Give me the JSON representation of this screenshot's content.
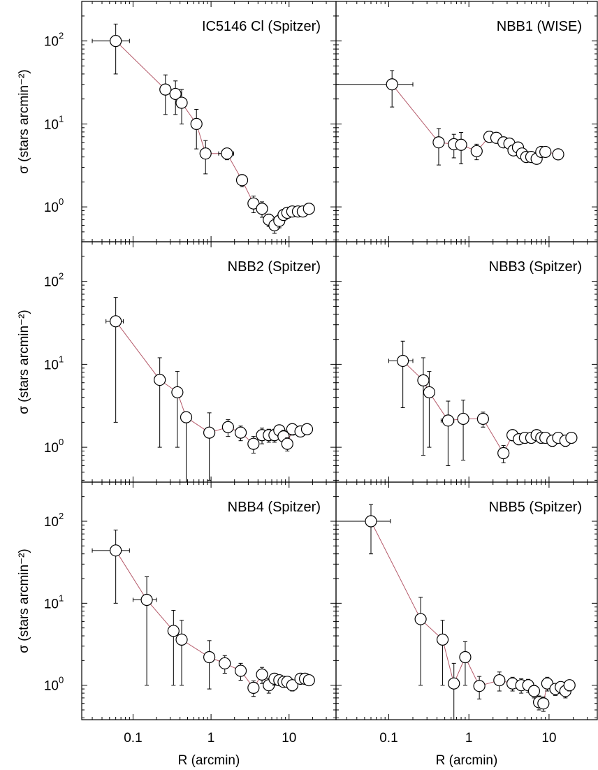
{
  "chart_data": {
    "type": "scatter",
    "layout": "3x2 grid, shared log axes",
    "xlabel": "R (arcmin)",
    "ylabel": "σ (stars arcmin⁻²)",
    "xscale": "log",
    "yscale": "log",
    "xlim": [
      0.022,
      40
    ],
    "ylim": [
      0.38,
      300
    ],
    "xticklabels": [
      {
        "value": 0.1,
        "label": "0.1"
      },
      {
        "value": 1,
        "label": "1"
      },
      {
        "value": 10,
        "label": "10"
      }
    ],
    "yticklabels": [
      {
        "value": 1,
        "label": "10",
        "exp": "0"
      },
      {
        "value": 10,
        "label": "10",
        "exp": "1"
      },
      {
        "value": 100,
        "label": "10",
        "exp": "2"
      }
    ],
    "markers": "open circles with x/y error bars",
    "line_color": "#b55a6a",
    "panels": [
      {
        "title": "IC5146 Cl (Spitzer)",
        "x": [
          0.06,
          0.26,
          0.35,
          0.42,
          0.65,
          0.85,
          1.6,
          2.5,
          3.5,
          4.5,
          5.5,
          6.5,
          7.5,
          8.5,
          9.5,
          11,
          13,
          15,
          18
        ],
        "y": [
          100,
          26,
          23,
          18,
          10,
          4.4,
          4.4,
          2.1,
          1.1,
          0.95,
          0.7,
          0.6,
          0.68,
          0.8,
          0.85,
          0.88,
          0.88,
          0.88,
          0.95
        ],
        "xerr": [
          0.03,
          0.02,
          0.02,
          0.02,
          0.05,
          0.06,
          0.35,
          0.2,
          0.3,
          0.4,
          0.4,
          0.4,
          0.4,
          0.4,
          0.4,
          0.5,
          0.5,
          0.5,
          0.5
        ],
        "yerr": [
          60,
          13,
          10,
          8,
          5,
          1.9,
          0.7,
          0.35,
          0.25,
          0.2,
          0.12,
          0.12,
          0.12,
          0.1,
          0.1,
          0.1,
          0.1,
          0.1,
          0.1
        ]
      },
      {
        "title": "NBB1 (WISE)",
        "x": [
          0.11,
          0.42,
          0.65,
          0.8,
          1.25,
          1.8,
          2.2,
          2.7,
          3.2,
          3.6,
          4.1,
          4.6,
          5.2,
          6.0,
          7.0,
          8.0,
          9.0,
          13.0
        ],
        "y": [
          30,
          6,
          5.7,
          5.6,
          4.7,
          7,
          6.8,
          6,
          5.8,
          4.8,
          5.2,
          4.4,
          4.0,
          4.0,
          3.8,
          4.6,
          4.6,
          4.3
        ],
        "xerr": [
          0.09,
          0.05,
          0.05,
          0.05,
          0.1,
          0.15,
          0.15,
          0.15,
          0.15,
          0.15,
          0.2,
          0.2,
          0.2,
          0.3,
          0.3,
          0.3,
          0.3,
          0.3
        ],
        "yerr": [
          14,
          2.8,
          1.8,
          2.3,
          1.0,
          1.0,
          0.8,
          0.7,
          0.6,
          0.5,
          0.5,
          0.5,
          0.5,
          0.5,
          0.5,
          0.5,
          0.5,
          0.5
        ]
      },
      {
        "title": "NBB2 (Spitzer)",
        "x": [
          0.06,
          0.22,
          0.37,
          0.48,
          0.95,
          1.65,
          2.4,
          3.5,
          4.5,
          5.5,
          6.5,
          7.5,
          8.5,
          9.5,
          11,
          14,
          17
        ],
        "y": [
          33,
          6.5,
          4.6,
          2.3,
          1.5,
          1.75,
          1.5,
          1.1,
          1.4,
          1.4,
          1.4,
          1.6,
          1.35,
          1.1,
          1.65,
          1.55,
          1.65
        ],
        "xerr": [
          0.015,
          0.025,
          0.025,
          0.06,
          0.1,
          0.2,
          0.2,
          0.3,
          0.3,
          0.3,
          0.3,
          0.4,
          0.4,
          0.4,
          0.4,
          0.5,
          0.5
        ],
        "yerr": [
          31,
          5.5,
          3.6,
          0,
          1.1,
          0.4,
          0.3,
          0.25,
          0.3,
          0.25,
          0.25,
          0.25,
          0.25,
          0.2,
          0.25,
          0.2,
          0.2
        ]
      },
      {
        "title": "NBB3 (Spitzer)",
        "x": [
          0.15,
          0.27,
          0.32,
          0.55,
          0.85,
          1.5,
          2.7,
          3.5,
          4.2,
          5.0,
          6.0,
          7.0,
          8.0,
          9.0,
          11,
          13,
          16,
          19
        ],
        "y": [
          11,
          6.4,
          4.6,
          2.1,
          2.2,
          2.2,
          0.85,
          1.4,
          1.25,
          1.3,
          1.3,
          1.4,
          1.3,
          1.3,
          1.2,
          1.3,
          1.2,
          1.3
        ],
        "xerr": [
          0.05,
          0.03,
          0.03,
          0.1,
          0.1,
          0.2,
          0.2,
          0.3,
          0.3,
          0.3,
          0.3,
          0.3,
          0.4,
          0.4,
          0.4,
          0.4,
          0.4,
          0.4
        ],
        "yerr": [
          8,
          5.6,
          3.6,
          1.5,
          1.5,
          0.45,
          0.2,
          0.2,
          0.18,
          0.18,
          0.18,
          0.18,
          0.18,
          0.18,
          0.18,
          0.18,
          0.18,
          0.18
        ]
      },
      {
        "title": "NBB4 (Spitzer)",
        "x": [
          0.06,
          0.15,
          0.33,
          0.42,
          0.95,
          1.5,
          2.4,
          3.5,
          4.5,
          5.5,
          6.5,
          7.5,
          8.5,
          9.5,
          11,
          14,
          16,
          18
        ],
        "y": [
          44,
          11,
          4.6,
          3.6,
          2.2,
          1.85,
          1.5,
          0.93,
          1.35,
          1.0,
          1.2,
          1.15,
          1.1,
          1.1,
          1.0,
          1.2,
          1.2,
          1.15
        ],
        "xerr": [
          0.03,
          0.05,
          0.02,
          0.02,
          0.1,
          0.15,
          0.15,
          0.2,
          0.2,
          0.3,
          0.3,
          0.3,
          0.3,
          0.4,
          0.4,
          0.4,
          0.4,
          0.4
        ],
        "yerr": [
          34,
          10,
          3.6,
          2.6,
          1.3,
          0.45,
          0.35,
          0.2,
          0.3,
          0.2,
          0.2,
          0.15,
          0.15,
          0.15,
          0.15,
          0.15,
          0.15,
          0.15
        ]
      },
      {
        "title": "NBB5 (Spitzer)",
        "x": [
          0.06,
          0.25,
          0.47,
          0.65,
          0.9,
          1.35,
          2.4,
          3.5,
          4.5,
          5.5,
          6.5,
          7.5,
          8.5,
          9.5,
          12,
          14,
          16,
          18
        ],
        "y": [
          100,
          6.4,
          3.6,
          1.05,
          2.2,
          0.98,
          1.15,
          1.05,
          1.0,
          1.0,
          0.85,
          0.62,
          0.6,
          1.05,
          0.9,
          0.95,
          0.85,
          1.0
        ],
        "xerr": [
          0.045,
          0.03,
          0.02,
          0.04,
          0.07,
          0.15,
          0.2,
          0.2,
          0.3,
          0.3,
          0.3,
          0.3,
          0.3,
          0.4,
          0.4,
          0.4,
          0.4,
          0.4
        ],
        "yerr": [
          60,
          5.4,
          2.6,
          0.8,
          1.2,
          0.3,
          0.3,
          0.2,
          0.2,
          0.18,
          0.15,
          0.12,
          0.12,
          0.2,
          0.15,
          0.15,
          0.15,
          0.15
        ]
      }
    ]
  }
}
